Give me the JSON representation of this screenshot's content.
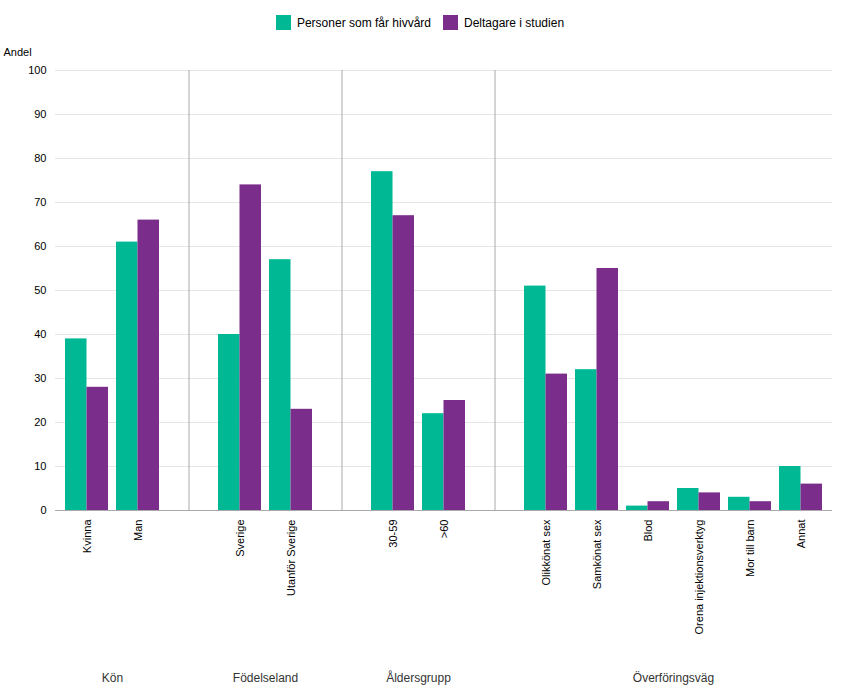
{
  "chart_data": {
    "type": "bar",
    "categories": [
      "Kvinna",
      "Man",
      "Sverige",
      "Utanför Sverige",
      "30-59",
      ">60",
      "Olikkönat sex",
      "Samkönat sex",
      "Blod",
      "Orena injektionsverktyg",
      "Mor till barn",
      "Annat"
    ],
    "groups": [
      {
        "label": "Kön",
        "categories": [
          "Kvinna",
          "Man"
        ]
      },
      {
        "label": "Födelseland",
        "categories": [
          "Sverige",
          "Utanför Sverige"
        ]
      },
      {
        "label": "Åldersgrupp",
        "categories": [
          "30-59",
          ">60"
        ]
      },
      {
        "label": "Överföringsväg",
        "categories": [
          "Olikkönat sex",
          "Samkönat sex",
          "Blod",
          "Orena injektionsverktyg",
          "Mor till barn",
          "Annat"
        ]
      }
    ],
    "series": [
      {
        "name": "Personer som får hivvård",
        "color": "#00b894",
        "values": [
          39,
          61,
          40,
          57,
          77,
          22,
          51,
          32,
          1,
          5,
          3,
          10
        ]
      },
      {
        "name": "Deltagare i studien",
        "color": "#7b2d8b",
        "values": [
          28,
          66,
          74,
          23,
          67,
          25,
          31,
          55,
          2,
          4,
          2,
          6
        ]
      }
    ],
    "ylabel": "Andel",
    "ylim": [
      0,
      100
    ],
    "yticks": [
      0,
      10,
      20,
      30,
      40,
      50,
      60,
      70,
      80,
      90,
      100
    ],
    "grid": true,
    "legend": "top"
  }
}
